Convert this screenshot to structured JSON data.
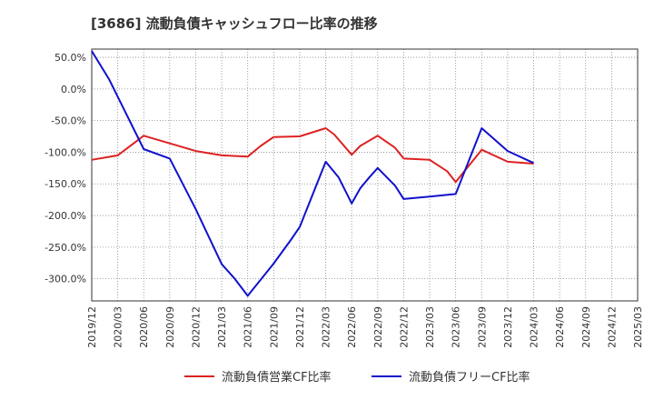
{
  "chart_data": {
    "type": "line",
    "title": "[3686]  流動負債キャッシュフロー比率の推移",
    "xlabel": "",
    "ylabel": "",
    "ylim": [
      -335,
      63
    ],
    "y_ticks": [
      50,
      0,
      -50,
      -100,
      -150,
      -200,
      -250,
      -300
    ],
    "y_tick_labels": [
      "50.0%",
      "0.0%",
      "-50.0%",
      "-100.0%",
      "-150.0%",
      "-200.0%",
      "-250.0%",
      "-300.0%"
    ],
    "x_tick_labels": [
      "2019/12",
      "2020/03",
      "2020/06",
      "2020/09",
      "2020/12",
      "2021/03",
      "2021/06",
      "2021/09",
      "2021/12",
      "2022/03",
      "2022/06",
      "2022/09",
      "2022/12",
      "2023/03",
      "2023/06",
      "2023/09",
      "2023/12",
      "2024/03",
      "2024/06",
      "2024/09",
      "2024/12",
      "2025/03"
    ],
    "grid": true,
    "legend_position": "bottom",
    "series": [
      {
        "name": "流動負債営業CF比率",
        "color": "#dd2222",
        "points": [
          [
            0,
            -112
          ],
          [
            1,
            -105
          ],
          [
            2,
            -74
          ],
          [
            3,
            -86
          ],
          [
            4,
            -98
          ],
          [
            5,
            -105
          ],
          [
            6,
            -107
          ],
          [
            6.5,
            -90
          ],
          [
            7,
            -76
          ],
          [
            8,
            -75
          ],
          [
            9,
            -62
          ],
          [
            9.33,
            -72
          ],
          [
            10,
            -104
          ],
          [
            10.33,
            -90
          ],
          [
            11,
            -74
          ],
          [
            11.67,
            -93
          ],
          [
            12,
            -110
          ],
          [
            13,
            -112
          ],
          [
            13.67,
            -130
          ],
          [
            14,
            -147
          ],
          [
            15,
            -96
          ],
          [
            16,
            -115
          ],
          [
            17,
            -118
          ]
        ]
      },
      {
        "name": "流動負債フリーCF比率",
        "color": "#1111cc",
        "points": [
          [
            0,
            60
          ],
          [
            0.67,
            15
          ],
          [
            2,
            -95
          ],
          [
            3,
            -110
          ],
          [
            4,
            -190
          ],
          [
            5,
            -277
          ],
          [
            5.5,
            -300
          ],
          [
            6,
            -327
          ],
          [
            7,
            -276
          ],
          [
            7.67,
            -238
          ],
          [
            8,
            -218
          ],
          [
            9,
            -115
          ],
          [
            9.5,
            -140
          ],
          [
            10,
            -181
          ],
          [
            10.33,
            -157
          ],
          [
            10.67,
            -140
          ],
          [
            11,
            -125
          ],
          [
            11.67,
            -153
          ],
          [
            12,
            -174
          ],
          [
            13,
            -170
          ],
          [
            14,
            -166
          ],
          [
            15,
            -62
          ],
          [
            16,
            -98
          ],
          [
            17,
            -117
          ]
        ]
      }
    ]
  }
}
